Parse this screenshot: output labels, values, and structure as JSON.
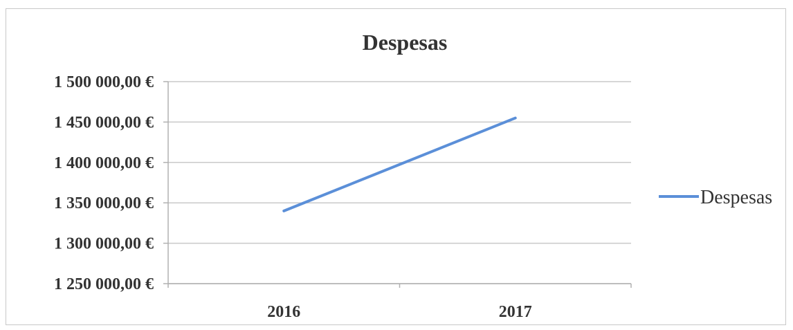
{
  "chart_data": {
    "type": "line",
    "title": "Despesas",
    "categories": [
      "2016",
      "2017"
    ],
    "series": [
      {
        "name": "Despesas",
        "values": [
          1340000,
          1455000
        ],
        "color": "#5b8fd8"
      }
    ],
    "ylim": [
      1250000,
      1500000
    ],
    "yticks": [
      1250000,
      1300000,
      1350000,
      1400000,
      1450000,
      1500000
    ],
    "ytick_labels": [
      "1 250 000,00 €",
      "1 300 000,00 €",
      "1 350 000,00 €",
      "1 400 000,00 €",
      "1 450 000,00 €",
      "1 500 000,00 €"
    ],
    "grid": true,
    "legend_position": "right"
  }
}
